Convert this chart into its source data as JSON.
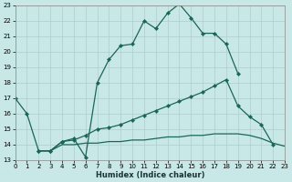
{
  "xlabel": "Humidex (Indice chaleur)",
  "bg_color": "#c8e8e8",
  "grid_color": "#b0cccc",
  "line_color": "#1a6655",
  "xlim": [
    0,
    23
  ],
  "ylim": [
    13,
    23
  ],
  "xticks": [
    0,
    1,
    2,
    3,
    4,
    5,
    6,
    7,
    8,
    9,
    10,
    11,
    12,
    13,
    14,
    15,
    16,
    17,
    18,
    19,
    20,
    21,
    22,
    23
  ],
  "yticks": [
    13,
    14,
    15,
    16,
    17,
    18,
    19,
    20,
    21,
    22,
    23
  ],
  "line1_x": [
    0,
    1,
    2,
    3,
    4,
    5,
    6,
    7,
    8,
    9,
    10,
    11,
    12,
    13,
    14,
    15,
    16,
    17,
    18,
    19
  ],
  "line1_y": [
    17.0,
    16.0,
    13.6,
    13.6,
    14.2,
    14.4,
    13.2,
    18.0,
    19.5,
    20.4,
    20.5,
    22.0,
    21.5,
    22.5,
    23.1,
    22.2,
    21.2,
    21.2,
    20.5,
    18.6
  ],
  "line2_x": [
    2,
    3,
    4,
    5,
    6,
    7,
    8,
    9,
    10,
    11,
    12,
    13,
    14,
    15,
    16,
    17,
    18,
    19,
    20,
    21,
    22
  ],
  "line2_y": [
    13.6,
    13.6,
    14.2,
    14.3,
    14.6,
    15.0,
    15.1,
    15.3,
    15.6,
    15.9,
    16.2,
    16.5,
    16.8,
    17.1,
    17.4,
    17.8,
    18.2,
    16.5,
    15.8,
    15.3,
    14.0
  ],
  "line3_x": [
    2,
    3,
    4,
    5,
    6,
    7,
    8,
    9,
    10,
    11,
    12,
    13,
    14,
    15,
    16,
    17,
    18,
    19,
    20,
    21,
    22,
    23
  ],
  "line3_y": [
    13.6,
    13.6,
    14.0,
    14.0,
    14.1,
    14.1,
    14.2,
    14.2,
    14.3,
    14.3,
    14.4,
    14.5,
    14.5,
    14.6,
    14.6,
    14.7,
    14.7,
    14.7,
    14.6,
    14.4,
    14.1,
    13.9
  ]
}
